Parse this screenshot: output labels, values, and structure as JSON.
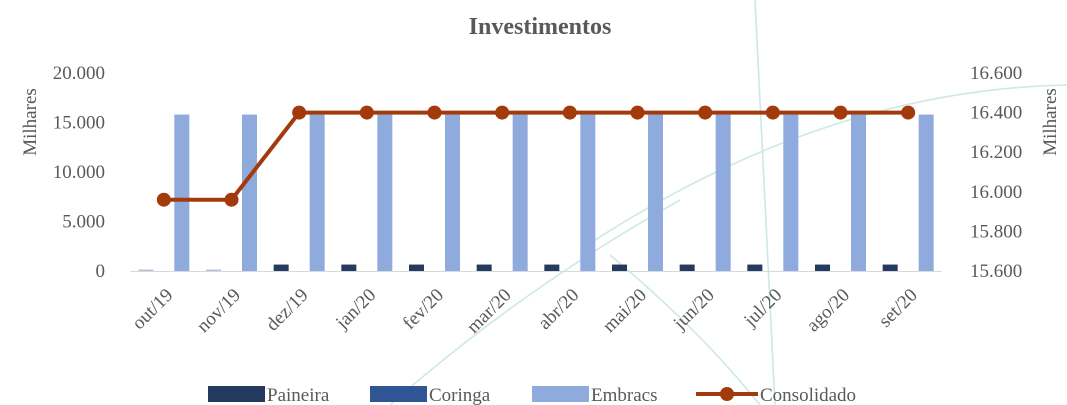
{
  "chart_data": {
    "type": "bar",
    "title": "Investimentos",
    "ylabel": "Milhares",
    "y2label": "Milhares",
    "categories": [
      "out/19",
      "nov/19",
      "dez/19",
      "jan/20",
      "fev/20",
      "mar/20",
      "abr/20",
      "mai/20",
      "jun/20",
      "jul/20",
      "ago/20",
      "set/20"
    ],
    "ylim": [
      0,
      20000
    ],
    "y2lim": [
      15600,
      16600
    ],
    "yticks": [
      "0",
      "5.000",
      "10.000",
      "15.000",
      "20.000"
    ],
    "y2ticks": [
      "15.600",
      "15.800",
      "16.000",
      "16.200",
      "16.400",
      "16.600"
    ],
    "series": [
      {
        "name": "Paineira",
        "kind": "bar",
        "axis": "left",
        "color": "#243a5e",
        "values": [
          150,
          150,
          650,
          650,
          650,
          650,
          650,
          650,
          650,
          650,
          650,
          650
        ]
      },
      {
        "name": "Coringa",
        "kind": "bar",
        "axis": "left",
        "color": "#2f5597",
        "values": [
          0,
          0,
          0,
          0,
          0,
          0,
          0,
          0,
          0,
          0,
          0,
          0
        ]
      },
      {
        "name": "Embracs",
        "kind": "bar",
        "axis": "left",
        "color": "#8faadc",
        "values": [
          15800,
          15800,
          15800,
          15800,
          15800,
          15800,
          15800,
          15800,
          15800,
          15800,
          15800,
          15800
        ]
      },
      {
        "name": "Consolidado",
        "kind": "line",
        "axis": "right",
        "color": "#a33a0c",
        "values": [
          15960,
          15960,
          16400,
          16400,
          16400,
          16400,
          16400,
          16400,
          16400,
          16400,
          16400,
          16400
        ]
      }
    ],
    "legend_position": "bottom",
    "grid": false
  }
}
